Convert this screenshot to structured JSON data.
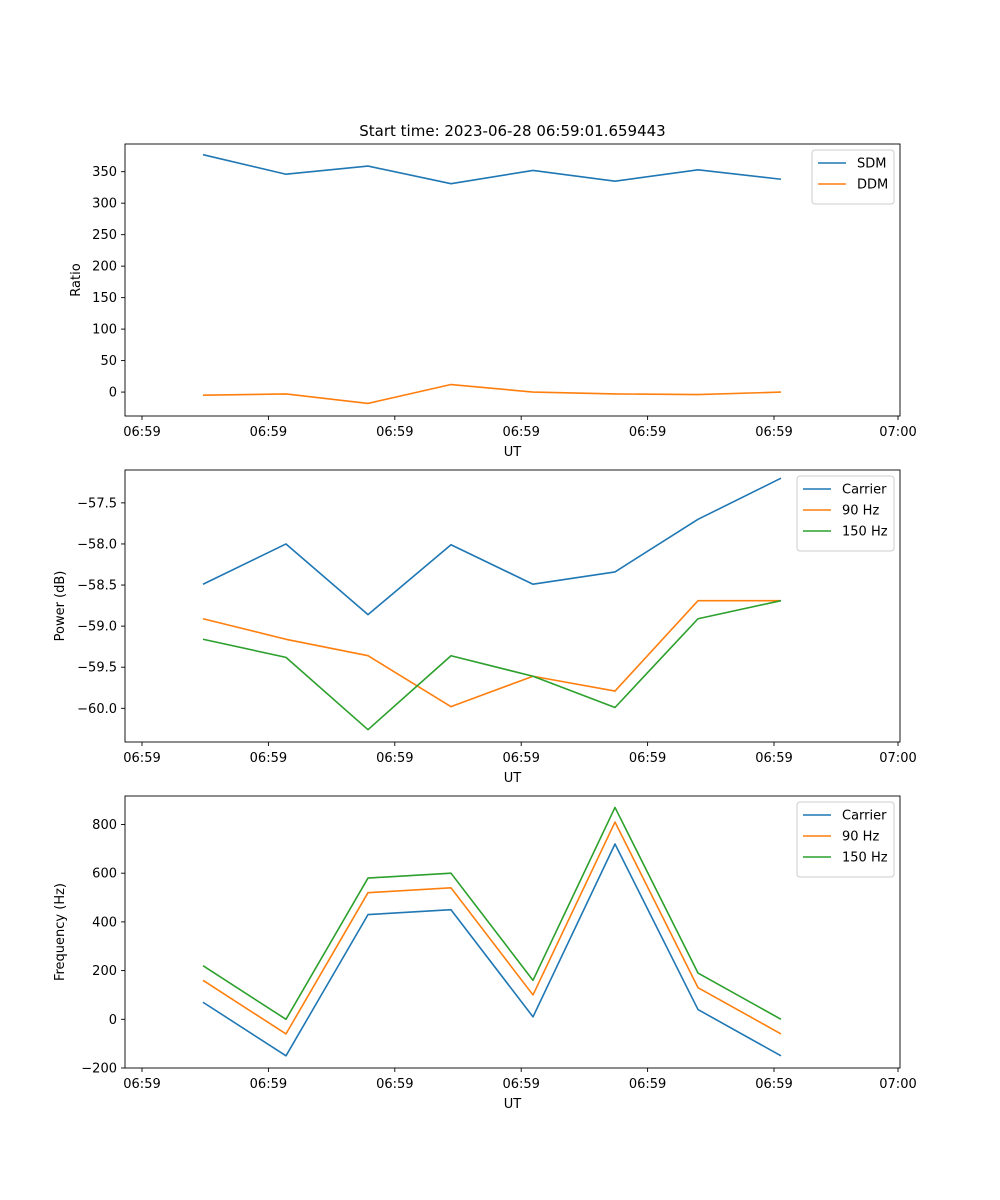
{
  "figure": {
    "title": "Start time: 2023-06-28 06:59:01.659443"
  },
  "chart_data": [
    {
      "type": "line",
      "xlabel": "UT",
      "ylabel": "Ratio",
      "x_ticks": [
        "06:59",
        "06:59",
        "06:59",
        "06:59",
        "06:59",
        "06:59",
        "07:00"
      ],
      "y_ticks": [
        0,
        50,
        100,
        150,
        200,
        250,
        300,
        350
      ],
      "ylim": [
        -38,
        394
      ],
      "legend_position": "top-right",
      "grid": false,
      "series": [
        {
          "name": "SDM",
          "color": "#1f77b4",
          "values": [
            377,
            346,
            359,
            331,
            352,
            335,
            353,
            338
          ]
        },
        {
          "name": "DDM",
          "color": "#ff7f0e",
          "values": [
            -5,
            -3,
            -18,
            12,
            0,
            -3,
            -4,
            0
          ]
        }
      ]
    },
    {
      "type": "line",
      "xlabel": "UT",
      "ylabel": "Power (dB)",
      "x_ticks": [
        "06:59",
        "06:59",
        "06:59",
        "06:59",
        "06:59",
        "06:59",
        "07:00"
      ],
      "y_ticks": [
        -60.0,
        -59.5,
        -59.0,
        -58.5,
        -58.0,
        -57.5
      ],
      "ylim": [
        -60.41,
        -57.1
      ],
      "legend_position": "top-right",
      "grid": false,
      "series": [
        {
          "name": "Carrier",
          "color": "#1f77b4",
          "values": [
            -58.49,
            -58.0,
            -58.86,
            -58.01,
            -58.49,
            -58.34,
            -57.7,
            -57.2
          ]
        },
        {
          "name": "90 Hz",
          "color": "#ff7f0e",
          "values": [
            -58.91,
            -59.16,
            -59.36,
            -59.98,
            -59.61,
            -59.79,
            -58.69,
            -58.69
          ]
        },
        {
          "name": "150 Hz",
          "color": "#2ca02c",
          "values": [
            -59.16,
            -59.38,
            -60.26,
            -59.36,
            -59.61,
            -59.99,
            -58.91,
            -58.69
          ]
        }
      ]
    },
    {
      "type": "line",
      "xlabel": "UT",
      "ylabel": "Frequency (Hz)",
      "x_ticks": [
        "06:59",
        "06:59",
        "06:59",
        "06:59",
        "06:59",
        "06:59",
        "07:00"
      ],
      "y_ticks": [
        -200,
        0,
        200,
        400,
        600,
        800
      ],
      "ylim": [
        -200,
        917
      ],
      "legend_position": "top-right",
      "grid": false,
      "series": [
        {
          "name": "Carrier",
          "color": "#1f77b4",
          "values": [
            70,
            -150,
            430,
            450,
            10,
            720,
            40,
            -150
          ]
        },
        {
          "name": "90 Hz",
          "color": "#ff7f0e",
          "values": [
            160,
            -60,
            520,
            540,
            100,
            810,
            130,
            -60
          ]
        },
        {
          "name": "150 Hz",
          "color": "#2ca02c",
          "values": [
            220,
            0,
            580,
            600,
            160,
            870,
            190,
            0
          ]
        }
      ]
    }
  ]
}
